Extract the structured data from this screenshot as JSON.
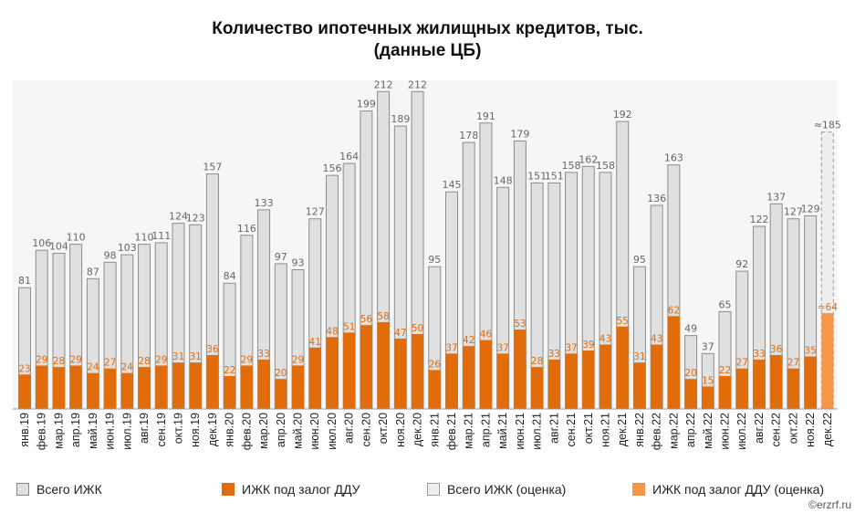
{
  "chart_data": {
    "type": "bar",
    "title_line1": "Количество ипотечных жилищных кредитов, тыс.",
    "title_line2": "(данные ЦБ)",
    "categories": [
      "янв.19",
      "фев.19",
      "мар.19",
      "апр.19",
      "май.19",
      "июн.19",
      "июл.19",
      "авг.19",
      "сен.19",
      "окт.19",
      "ноя.19",
      "дек.19",
      "янв.20",
      "фев.20",
      "мар.20",
      "апр.20",
      "май.20",
      "июн.20",
      "июл.20",
      "авг.20",
      "сен.20",
      "окт.20",
      "ноя.20",
      "дек.20",
      "янв.21",
      "фев.21",
      "мар.21",
      "апр.21",
      "май.21",
      "июн.21",
      "июл.21",
      "авг.21",
      "сен.21",
      "окт.21",
      "ноя.21",
      "дек.21",
      "янв.22",
      "фев.22",
      "мар.22",
      "апр.22",
      "май.22",
      "июн.22",
      "июл.22",
      "авг.22",
      "сен.22",
      "окт.22",
      "ноя.22",
      "дек.22"
    ],
    "series": [
      {
        "name": "Всего ИЖК",
        "color": "#e0e0e0",
        "values": [
          81,
          106,
          104,
          110,
          87,
          98,
          103,
          110,
          111,
          124,
          123,
          157,
          84,
          116,
          133,
          97,
          93,
          127,
          156,
          164,
          199,
          212,
          189,
          212,
          95,
          145,
          178,
          191,
          148,
          179,
          151,
          151,
          158,
          162,
          158,
          192,
          95,
          136,
          163,
          49,
          37,
          65,
          92,
          122,
          137,
          127,
          129,
          null
        ]
      },
      {
        "name": "ИЖК под залог ДДУ",
        "color": "#e36c0a",
        "values": [
          23,
          29,
          28,
          29,
          24,
          27,
          24,
          28,
          29,
          31,
          31,
          36,
          22,
          29,
          33,
          20,
          29,
          41,
          48,
          51,
          56,
          58,
          47,
          50,
          26,
          37,
          42,
          46,
          37,
          53,
          28,
          33,
          37,
          39,
          43,
          55,
          31,
          43,
          62,
          20,
          15,
          22,
          27,
          33,
          36,
          27,
          35,
          null
        ]
      },
      {
        "name": "Всего ИЖК (оценка)",
        "color": "#eeeeee",
        "values": [
          null,
          null,
          null,
          null,
          null,
          null,
          null,
          null,
          null,
          null,
          null,
          null,
          null,
          null,
          null,
          null,
          null,
          null,
          null,
          null,
          null,
          null,
          null,
          null,
          null,
          null,
          null,
          null,
          null,
          null,
          null,
          null,
          null,
          null,
          null,
          null,
          null,
          null,
          null,
          null,
          null,
          null,
          null,
          null,
          null,
          null,
          null,
          185
        ],
        "label": "≈185"
      },
      {
        "name": "ИЖК под залог ДДУ (оценка)",
        "color": "#f79646",
        "values": [
          null,
          null,
          null,
          null,
          null,
          null,
          null,
          null,
          null,
          null,
          null,
          null,
          null,
          null,
          null,
          null,
          null,
          null,
          null,
          null,
          null,
          null,
          null,
          null,
          null,
          null,
          null,
          null,
          null,
          null,
          null,
          null,
          null,
          null,
          null,
          null,
          null,
          null,
          null,
          null,
          null,
          null,
          null,
          null,
          null,
          null,
          null,
          64
        ],
        "label": "≈64"
      }
    ],
    "ylim": [
      0,
      220
    ],
    "grid": false,
    "legend": "bottom"
  },
  "source": "©erzrf.ru"
}
